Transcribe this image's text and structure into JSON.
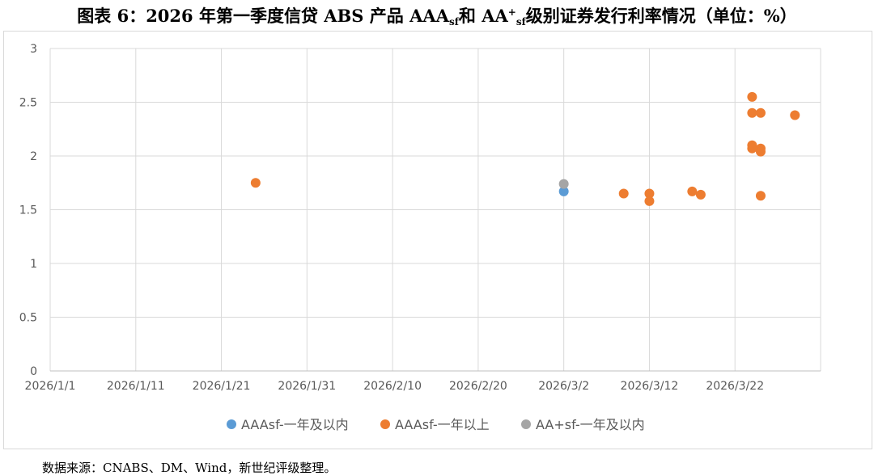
{
  "title": {
    "prefix": "图表 6：2026 年第一季度信贷 ABS 产品 AAA",
    "sub1": "sf",
    "middle": "和 AA",
    "sup": "+",
    "sub2": "sf",
    "suffix": "级别证券发行利率情况（单位：%）"
  },
  "source": "数据来源：CNABS、DM、Wind，新世纪评级整理。",
  "chart_data": {
    "type": "scatter",
    "title": "",
    "xlabel": "",
    "ylabel": "",
    "xlim": [
      "2026/1/1",
      "2026/4/1"
    ],
    "ylim": [
      0,
      3
    ],
    "x_ticks": [
      "2026/1/1",
      "2026/1/11",
      "2026/1/21",
      "2026/1/31",
      "2026/2/10",
      "2026/2/20",
      "2026/3/2",
      "2026/3/12",
      "2026/3/22"
    ],
    "y_ticks": [
      "0",
      "0.5",
      "1",
      "1.5",
      "2",
      "2.5",
      "3"
    ],
    "y_tick_values": [
      0,
      0.5,
      1,
      1.5,
      2,
      2.5,
      3
    ],
    "grid": true,
    "legend_position": "bottom",
    "series": [
      {
        "name": "AAAsf-一年及以内",
        "color": "#5b9bd5",
        "points": [
          {
            "x": "2026/3/2",
            "y": 1.67
          }
        ]
      },
      {
        "name": "AAAsf-一年以上",
        "color": "#ed7d31",
        "points": [
          {
            "x": "2026/1/25",
            "y": 1.75
          },
          {
            "x": "2026/3/9",
            "y": 1.65
          },
          {
            "x": "2026/3/12",
            "y": 1.65
          },
          {
            "x": "2026/3/12",
            "y": 1.58
          },
          {
            "x": "2026/3/17",
            "y": 1.67
          },
          {
            "x": "2026/3/18",
            "y": 1.64
          },
          {
            "x": "2026/3/24",
            "y": 2.55
          },
          {
            "x": "2026/3/24",
            "y": 2.4
          },
          {
            "x": "2026/3/24",
            "y": 2.1
          },
          {
            "x": "2026/3/24",
            "y": 2.07
          },
          {
            "x": "2026/3/25",
            "y": 2.4
          },
          {
            "x": "2026/3/25",
            "y": 2.07
          },
          {
            "x": "2026/3/25",
            "y": 2.04
          },
          {
            "x": "2026/3/25",
            "y": 1.63
          },
          {
            "x": "2026/3/29",
            "y": 2.38
          }
        ]
      },
      {
        "name": "AA+sf-一年及以内",
        "color": "#a5a5a5",
        "points": [
          {
            "x": "2026/3/2",
            "y": 1.74
          }
        ]
      }
    ]
  }
}
